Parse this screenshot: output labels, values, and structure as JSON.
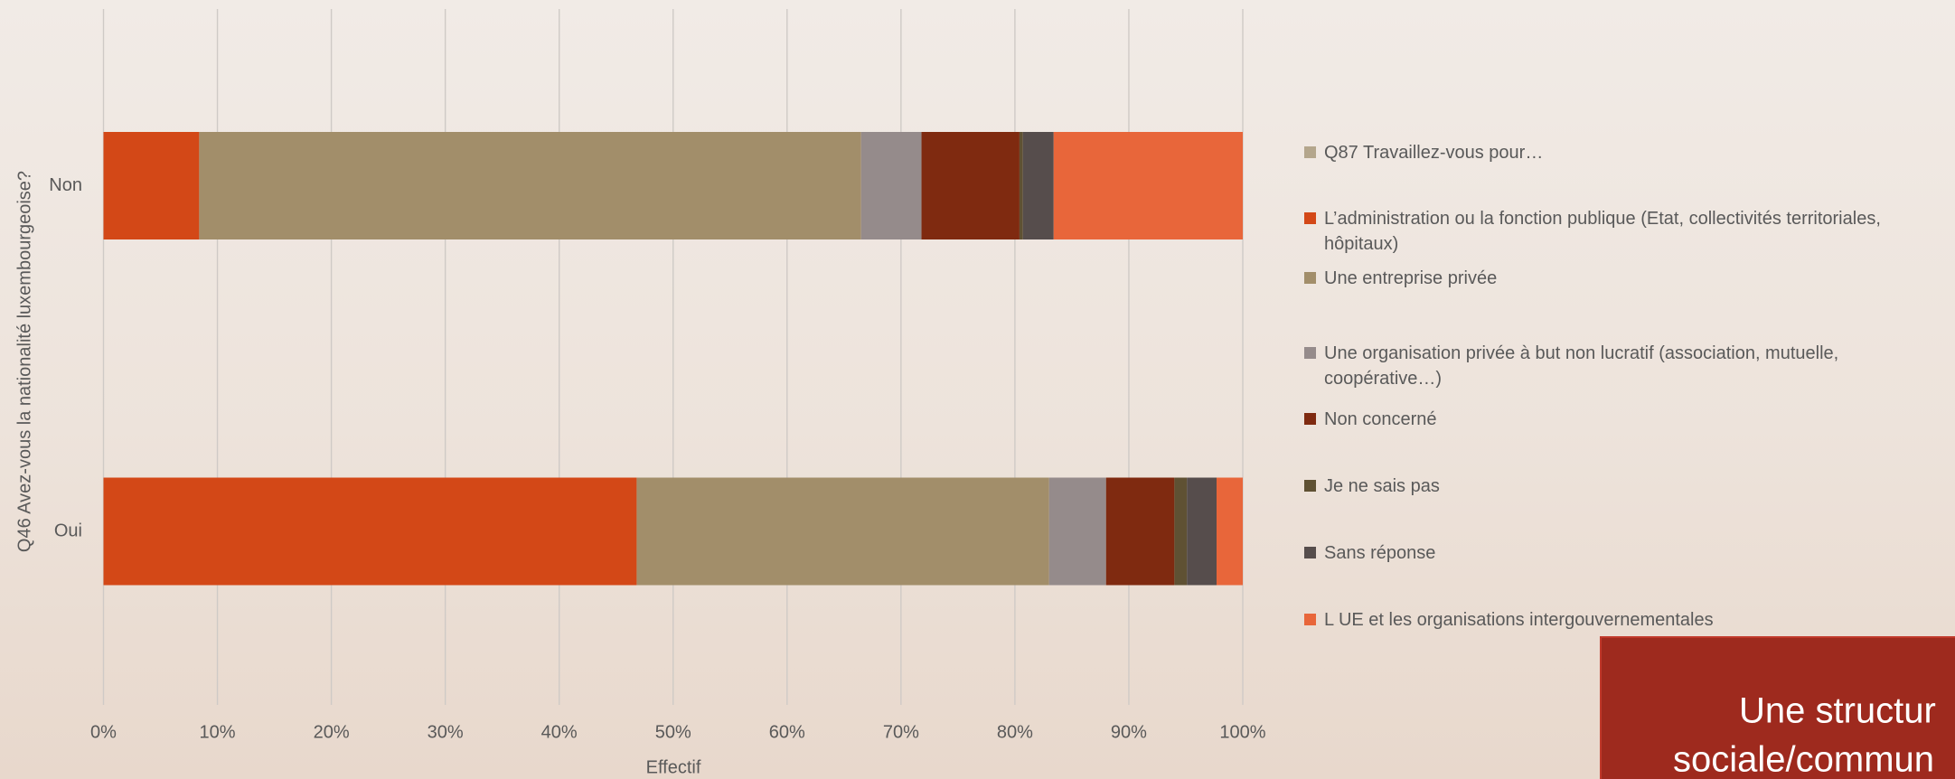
{
  "chart_data": {
    "type": "stacked-bar-horizontal",
    "y_axis_title": "Q46 Avez-vous la nationalité luxembourgeoise?",
    "x_axis_title": "Effectif",
    "categories": [
      "Non",
      "Oui"
    ],
    "legend_title": "Q87 Travaillez-vous pour…",
    "legend_title_color": "#b4a68c",
    "series": [
      {
        "name": "L’administration ou la fonction publique (Etat, collectivités territoriales, hôpitaux)",
        "color": "#d34817",
        "values": [
          8.4,
          46.8
        ]
      },
      {
        "name": "Une entreprise privée",
        "color": "#a28e6a",
        "values": [
          58.1,
          36.2
        ]
      },
      {
        "name": "Une organisation privée à but non lucratif (association, mutuelle, coopérative…)",
        "color": "#958b8b",
        "values": [
          5.3,
          5.0
        ]
      },
      {
        "name": "Non concerné",
        "color": "#7f2a10",
        "values": [
          8.6,
          6.0
        ]
      },
      {
        "name": "Je ne sais pas",
        "color": "#5f5133",
        "values": [
          0.3,
          1.1
        ]
      },
      {
        "name": "Sans réponse",
        "color": "#564d4c",
        "values": [
          2.7,
          2.6
        ]
      },
      {
        "name": "L UE et les organisations intergouvernementales",
        "color": "#e8663a",
        "values": [
          16.6,
          2.3
        ]
      }
    ],
    "xlim": [
      0,
      100
    ],
    "xticks": [
      {
        "value": 0,
        "label": "0%"
      },
      {
        "value": 10,
        "label": "10%"
      },
      {
        "value": 20,
        "label": "20%"
      },
      {
        "value": 30,
        "label": "30%"
      },
      {
        "value": 40,
        "label": "40%"
      },
      {
        "value": 50,
        "label": "50%"
      },
      {
        "value": 60,
        "label": "60%"
      },
      {
        "value": 70,
        "label": "70%"
      },
      {
        "value": 80,
        "label": "80%"
      },
      {
        "value": 90,
        "label": "90%"
      },
      {
        "value": 100,
        "label": "100%"
      }
    ],
    "grid": true,
    "annotation": [
      "Une structur",
      "sociale/commun"
    ]
  }
}
